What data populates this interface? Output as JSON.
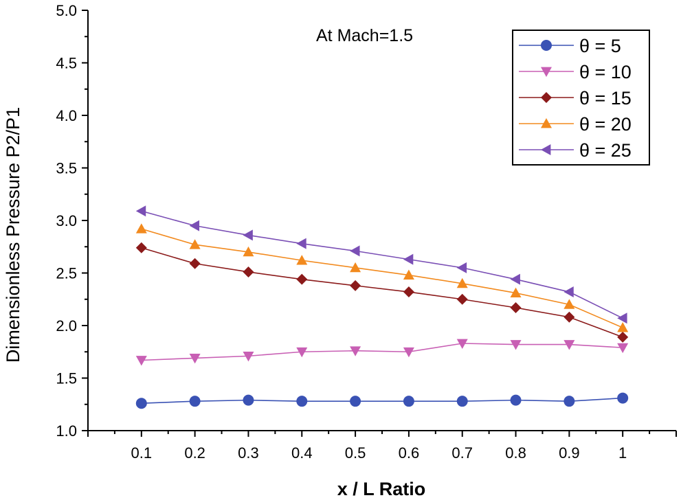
{
  "chart_data": {
    "type": "line",
    "title": "",
    "annotation": "At Mach=1.5",
    "xlabel": "x / L Ratio",
    "ylabel": "Dimensionless Pressure P2/P1",
    "xlim": [
      0,
      1.1
    ],
    "ylim": [
      1.0,
      5.0
    ],
    "x_ticks": [
      0.1,
      0.2,
      0.3,
      0.4,
      0.5,
      0.6,
      0.7,
      0.8,
      0.9,
      1
    ],
    "x_tick_labels": [
      "0.1",
      "0.2",
      "0.3",
      "0.4",
      "0.5",
      "0.6",
      "0.7",
      "0.8",
      "0.9",
      "1"
    ],
    "y_ticks": [
      1.0,
      1.5,
      2.0,
      2.5,
      3.0,
      3.5,
      4.0,
      4.5,
      5.0
    ],
    "y_tick_labels": [
      "1.0",
      "1.5",
      "2.0",
      "2.5",
      "3.0",
      "3.5",
      "4.0",
      "4.5",
      "5.0"
    ],
    "grid": false,
    "legend_position": "top-right",
    "x": [
      0.1,
      0.2,
      0.3,
      0.4,
      0.5,
      0.6,
      0.7,
      0.8,
      0.9,
      1.0
    ],
    "series": [
      {
        "name": "θ = 5",
        "marker": "circle",
        "color": "#3a52b4",
        "values": [
          1.26,
          1.28,
          1.29,
          1.28,
          1.28,
          1.28,
          1.28,
          1.29,
          1.28,
          1.31
        ]
      },
      {
        "name": "θ = 10",
        "marker": "triangle-down",
        "color": "#c85fb4",
        "values": [
          1.67,
          1.69,
          1.71,
          1.75,
          1.76,
          1.75,
          1.83,
          1.82,
          1.82,
          1.79
        ]
      },
      {
        "name": "θ = 15",
        "marker": "diamond",
        "color": "#8b1a1a",
        "values": [
          2.74,
          2.59,
          2.51,
          2.44,
          2.38,
          2.32,
          2.25,
          2.17,
          2.08,
          1.89
        ]
      },
      {
        "name": "θ = 20",
        "marker": "triangle-up",
        "color": "#f28a1e",
        "values": [
          2.92,
          2.77,
          2.7,
          2.62,
          2.55,
          2.48,
          2.4,
          2.31,
          2.2,
          1.98
        ]
      },
      {
        "name": "θ = 25",
        "marker": "triangle-left",
        "color": "#7a4fb5",
        "values": [
          3.09,
          2.95,
          2.86,
          2.78,
          2.71,
          2.63,
          2.55,
          2.44,
          2.32,
          2.07
        ]
      }
    ]
  }
}
